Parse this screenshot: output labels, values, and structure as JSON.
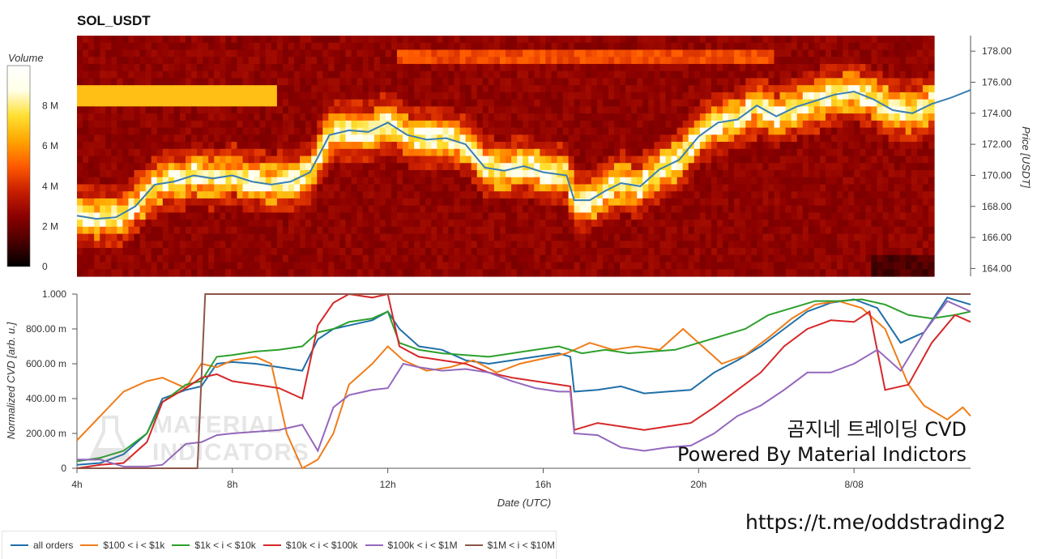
{
  "title": "SOL_USDT",
  "watermark": {
    "line1": "곰지네 트레이딩 CVD",
    "line2": "Powered By Material Indictors",
    "logo_line1": "MATERIAL",
    "logo_line2": "INDICATORS",
    "logo_icon": "flask-icon"
  },
  "url": "https://t.me/oddstrading2",
  "chart_data": [
    {
      "type": "heatmap",
      "title": "SOL_USDT",
      "ylabel": "Price [USDT]",
      "ylim": [
        163.5,
        179.0
      ],
      "y_ticks": [
        "178.00",
        "176.00",
        "174.00",
        "172.00",
        "170.00",
        "168.00",
        "166.00",
        "164.00"
      ],
      "y_tick_values": [
        178,
        176,
        174,
        172,
        170,
        168,
        166,
        164
      ],
      "x_range_hours": [
        4.0,
        27.0
      ],
      "colorbar": {
        "label": "Volume",
        "ticks": [
          "8 M",
          "6 M",
          "4 M",
          "2 M",
          "0"
        ],
        "tick_values": [
          8,
          6,
          4,
          2,
          0
        ],
        "range": [
          0,
          10
        ],
        "colors": [
          "#000000",
          "#4a0000",
          "#8b0000",
          "#c81e00",
          "#ff5a00",
          "#ffa500",
          "#ffe030",
          "#ffffe8",
          "#ffffff"
        ]
      },
      "price_series": {
        "color": "#3a7fb0",
        "x": [
          4.0,
          4.5,
          5.0,
          5.5,
          6.0,
          6.5,
          7.0,
          7.5,
          8.0,
          8.5,
          9.0,
          9.5,
          10.0,
          10.5,
          11.0,
          11.5,
          12.0,
          12.5,
          13.0,
          13.5,
          14.0,
          14.5,
          15.0,
          15.5,
          16.0,
          16.6,
          16.8,
          17.2,
          17.6,
          18.0,
          18.5,
          19.0,
          19.5,
          20.0,
          20.5,
          21.0,
          21.5,
          22.0,
          22.5,
          23.0,
          23.5,
          24.0,
          24.5,
          25.0,
          25.5,
          26.0,
          26.5,
          27.0
        ],
        "y": [
          167.4,
          167.2,
          167.3,
          168.0,
          169.4,
          169.6,
          170.0,
          169.8,
          170.0,
          169.6,
          169.4,
          169.6,
          170.2,
          172.6,
          172.9,
          172.8,
          173.4,
          172.6,
          172.3,
          172.4,
          172.0,
          170.5,
          170.3,
          170.6,
          170.2,
          170.0,
          168.4,
          168.4,
          169.0,
          169.5,
          169.3,
          170.4,
          171.0,
          172.5,
          173.4,
          173.6,
          174.5,
          173.8,
          174.4,
          174.8,
          175.2,
          175.4,
          174.9,
          174.2,
          174.0,
          174.6,
          175.0,
          175.5
        ]
      }
    },
    {
      "type": "line",
      "xlabel": "Date (UTC)",
      "ylabel": "Normalized CVD [arb. u.]",
      "ylim": [
        0,
        1.0
      ],
      "y_ticks": [
        "1.000",
        "800.00 m",
        "600.00 m",
        "400.00 m",
        "200.00 m",
        "0"
      ],
      "y_tick_values": [
        1.0,
        0.8,
        0.6,
        0.4,
        0.2,
        0.0
      ],
      "x_range_hours": [
        4.0,
        27.0
      ],
      "x_ticks": [
        "4h",
        "8h",
        "12h",
        "16h",
        "20h",
        "8/08"
      ],
      "x_tick_values": [
        4,
        8,
        12,
        16,
        20,
        24
      ],
      "series": [
        {
          "name": "all orders",
          "color": "#1f6fa8",
          "x": [
            4.0,
            4.6,
            5.2,
            5.8,
            6.2,
            6.8,
            7.2,
            7.6,
            8.0,
            8.6,
            9.2,
            9.8,
            10.2,
            10.6,
            11.0,
            11.6,
            12.0,
            12.3,
            12.8,
            13.4,
            14.0,
            14.6,
            15.2,
            15.8,
            16.4,
            16.7,
            16.8,
            17.4,
            18.0,
            18.6,
            19.2,
            19.8,
            20.4,
            21.0,
            21.6,
            22.2,
            22.8,
            23.4,
            24.0,
            24.6,
            25.2,
            25.8,
            26.4,
            27.0
          ],
          "y": [
            0.02,
            0.03,
            0.08,
            0.2,
            0.4,
            0.45,
            0.47,
            0.6,
            0.61,
            0.6,
            0.58,
            0.56,
            0.74,
            0.8,
            0.82,
            0.85,
            0.9,
            0.8,
            0.7,
            0.68,
            0.62,
            0.6,
            0.62,
            0.64,
            0.66,
            0.64,
            0.44,
            0.45,
            0.47,
            0.43,
            0.44,
            0.45,
            0.55,
            0.62,
            0.7,
            0.8,
            0.9,
            0.95,
            0.97,
            0.92,
            0.72,
            0.78,
            0.98,
            0.94
          ]
        },
        {
          "name": "$100 < i < $1k",
          "color": "#f07d1a",
          "x": [
            4.0,
            4.6,
            5.2,
            5.8,
            6.2,
            6.8,
            7.2,
            7.6,
            8.0,
            8.6,
            9.0,
            9.4,
            9.8,
            10.2,
            10.6,
            11.0,
            11.6,
            12.0,
            12.4,
            13.0,
            13.6,
            14.2,
            14.8,
            15.4,
            16.0,
            16.6,
            17.2,
            17.8,
            18.4,
            19.0,
            19.6,
            20.0,
            20.6,
            21.2,
            21.8,
            22.4,
            23.0,
            23.6,
            24.2,
            24.8,
            25.4,
            25.8,
            26.4,
            26.8,
            27.0
          ],
          "y": [
            0.16,
            0.3,
            0.44,
            0.5,
            0.52,
            0.46,
            0.6,
            0.58,
            0.62,
            0.64,
            0.6,
            0.2,
            0.0,
            0.05,
            0.2,
            0.48,
            0.6,
            0.7,
            0.62,
            0.56,
            0.58,
            0.62,
            0.55,
            0.6,
            0.63,
            0.66,
            0.72,
            0.68,
            0.7,
            0.68,
            0.8,
            0.72,
            0.6,
            0.65,
            0.75,
            0.86,
            0.94,
            0.96,
            0.92,
            0.8,
            0.48,
            0.36,
            0.28,
            0.35,
            0.3
          ]
        },
        {
          "name": "$1k < i < $10k",
          "color": "#2ca02c",
          "x": [
            4.0,
            4.6,
            5.2,
            5.8,
            6.2,
            6.8,
            7.2,
            7.6,
            8.0,
            8.6,
            9.2,
            9.8,
            10.2,
            10.6,
            11.0,
            11.6,
            12.0,
            12.3,
            12.8,
            13.4,
            14.0,
            14.6,
            15.2,
            15.8,
            16.4,
            17.0,
            17.6,
            18.2,
            18.8,
            19.4,
            20.0,
            20.6,
            21.2,
            21.8,
            22.4,
            23.0,
            23.6,
            24.2,
            24.8,
            25.4,
            26.0,
            26.6,
            27.0
          ],
          "y": [
            0.04,
            0.06,
            0.1,
            0.2,
            0.38,
            0.48,
            0.5,
            0.64,
            0.65,
            0.67,
            0.68,
            0.7,
            0.78,
            0.8,
            0.84,
            0.86,
            0.9,
            0.72,
            0.68,
            0.66,
            0.65,
            0.64,
            0.66,
            0.68,
            0.7,
            0.66,
            0.68,
            0.66,
            0.67,
            0.68,
            0.72,
            0.76,
            0.8,
            0.88,
            0.92,
            0.96,
            0.96,
            0.97,
            0.94,
            0.88,
            0.86,
            0.88,
            0.9
          ]
        },
        {
          "name": "$10k < i < $100k",
          "color": "#d62728",
          "x": [
            4.0,
            4.6,
            5.2,
            5.8,
            6.2,
            6.8,
            7.2,
            7.6,
            8.0,
            8.6,
            9.2,
            9.8,
            10.2,
            10.6,
            11.0,
            11.6,
            12.0,
            12.3,
            12.8,
            13.4,
            14.0,
            14.6,
            15.2,
            15.8,
            16.4,
            16.7,
            16.8,
            17.4,
            18.0,
            18.6,
            19.2,
            19.8,
            20.4,
            21.0,
            21.6,
            22.2,
            22.8,
            23.4,
            24.0,
            24.4,
            24.8,
            25.4,
            26.0,
            26.6,
            27.0
          ],
          "y": [
            0.0,
            0.02,
            0.03,
            0.15,
            0.38,
            0.46,
            0.52,
            0.54,
            0.5,
            0.48,
            0.46,
            0.4,
            0.82,
            0.95,
            1.0,
            0.98,
            1.0,
            0.7,
            0.64,
            0.62,
            0.6,
            0.55,
            0.52,
            0.5,
            0.48,
            0.47,
            0.22,
            0.26,
            0.24,
            0.22,
            0.24,
            0.26,
            0.35,
            0.45,
            0.55,
            0.7,
            0.8,
            0.85,
            0.84,
            0.9,
            0.45,
            0.48,
            0.72,
            0.88,
            0.84
          ]
        },
        {
          "name": "$100k < i < $1M",
          "color": "#9467bd",
          "x": [
            4.0,
            4.6,
            5.2,
            5.8,
            6.2,
            6.8,
            7.2,
            7.6,
            8.0,
            8.6,
            9.2,
            9.8,
            10.2,
            10.6,
            11.0,
            11.6,
            12.0,
            12.4,
            12.8,
            13.4,
            14.0,
            14.6,
            15.2,
            15.8,
            16.4,
            16.7,
            16.8,
            17.4,
            18.0,
            18.6,
            19.2,
            19.8,
            20.4,
            21.0,
            21.6,
            22.2,
            22.8,
            23.4,
            24.0,
            24.6,
            25.2,
            25.8,
            26.4,
            27.0
          ],
          "y": [
            0.05,
            0.05,
            0.01,
            0.01,
            0.02,
            0.14,
            0.15,
            0.19,
            0.2,
            0.21,
            0.22,
            0.25,
            0.1,
            0.35,
            0.42,
            0.45,
            0.46,
            0.6,
            0.58,
            0.56,
            0.57,
            0.55,
            0.5,
            0.46,
            0.44,
            0.44,
            0.2,
            0.19,
            0.12,
            0.1,
            0.12,
            0.13,
            0.2,
            0.3,
            0.36,
            0.45,
            0.55,
            0.55,
            0.6,
            0.68,
            0.56,
            0.78,
            0.96,
            0.9
          ]
        },
        {
          "name": "$1M < i < $10M",
          "color": "#8c564b",
          "x": [
            4.0,
            7.1,
            7.3,
            27.0
          ],
          "y": [
            0.0,
            0.0,
            1.0,
            1.0
          ]
        }
      ]
    }
  ]
}
